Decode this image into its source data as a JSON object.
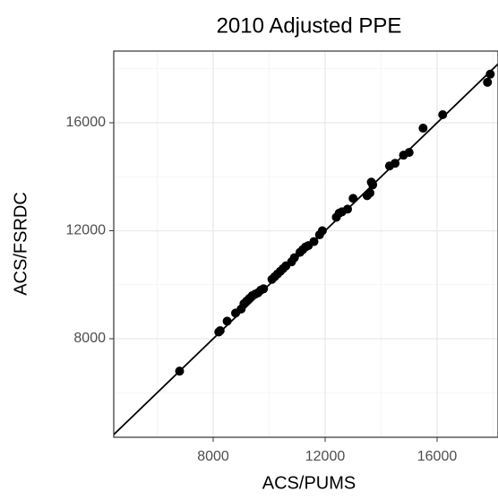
{
  "chart_data": {
    "type": "scatter",
    "title": "2010 Adjusted PPE",
    "x_label": "ACS/PUMS",
    "y_label": "ACS/FSRDC",
    "x": [
      6800,
      8200,
      8250,
      8500,
      8800,
      9000,
      9100,
      9200,
      9300,
      9400,
      9500,
      9600,
      9700,
      9800,
      10100,
      10200,
      10300,
      10400,
      10500,
      10600,
      10800,
      10900,
      11100,
      11200,
      11300,
      11400,
      11600,
      11800,
      11900,
      12400,
      12500,
      12600,
      12800,
      13000,
      13500,
      13600,
      13700,
      13650,
      14300,
      14500,
      14800,
      15000,
      15500,
      16200,
      17800,
      17900
    ],
    "values": [
      6800,
      8250,
      8300,
      8650,
      8950,
      9100,
      9300,
      9400,
      9500,
      9600,
      9650,
      9700,
      9800,
      9850,
      10200,
      10300,
      10400,
      10500,
      10600,
      10700,
      10850,
      11000,
      11200,
      11300,
      11400,
      11450,
      11600,
      11850,
      12000,
      12500,
      12650,
      12700,
      12800,
      13200,
      13300,
      13400,
      13700,
      13800,
      14400,
      14500,
      14800,
      14900,
      15800,
      16300,
      17500,
      17800
    ],
    "color": "#000000",
    "reference_line": {
      "slope": 1,
      "intercept": 0
    },
    "xlim": [
      4448,
      18176
    ],
    "xticks": [
      8000,
      12000,
      16000
    ],
    "x_minor": [
      6000,
      10000,
      14000,
      18000
    ],
    "ylim": [
      4349,
      18656
    ],
    "yticks": [
      8000,
      12000,
      16000
    ],
    "y_minor": [
      6000,
      10000,
      14000,
      18000
    ],
    "grid": true
  }
}
